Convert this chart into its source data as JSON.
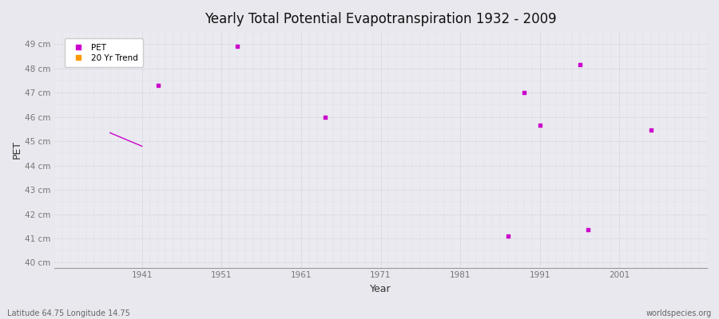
{
  "title": "Yearly Total Potential Evapotranspiration 1932 - 2009",
  "xlabel": "Year",
  "ylabel": "PET",
  "subtitle_left": "Latitude 64.75 Longitude 14.75",
  "subtitle_right": "worldspecies.org",
  "background_color": "#e8e8ee",
  "plot_bg_color": "#eaeaf0",
  "ylim": [
    39.8,
    49.5
  ],
  "xlim": [
    1930,
    2012
  ],
  "yticks": [
    40,
    41,
    42,
    43,
    44,
    45,
    46,
    47,
    48,
    49
  ],
  "ytick_labels": [
    "40 cm",
    "41 cm",
    "42 cm",
    "43 cm",
    "44 cm",
    "45 cm",
    "46 cm",
    "47 cm",
    "48 cm",
    "49 cm"
  ],
  "xticks": [
    1941,
    1951,
    1961,
    1971,
    1981,
    1991,
    2001
  ],
  "pet_color": "#cc00cc",
  "trend_color": "#ff9900",
  "pet_points": [
    [
      1943,
      47.3
    ],
    [
      1953,
      48.9
    ],
    [
      1964,
      46.0
    ],
    [
      1987,
      41.1
    ],
    [
      1989,
      47.0
    ],
    [
      1991,
      45.65
    ],
    [
      1996,
      48.15
    ],
    [
      1997,
      41.35
    ],
    [
      2005,
      45.45
    ]
  ],
  "trend_line": [
    [
      1937,
      45.35
    ],
    [
      1941,
      44.8
    ]
  ],
  "grid_color": "#ccccdd",
  "marker_size": 4
}
